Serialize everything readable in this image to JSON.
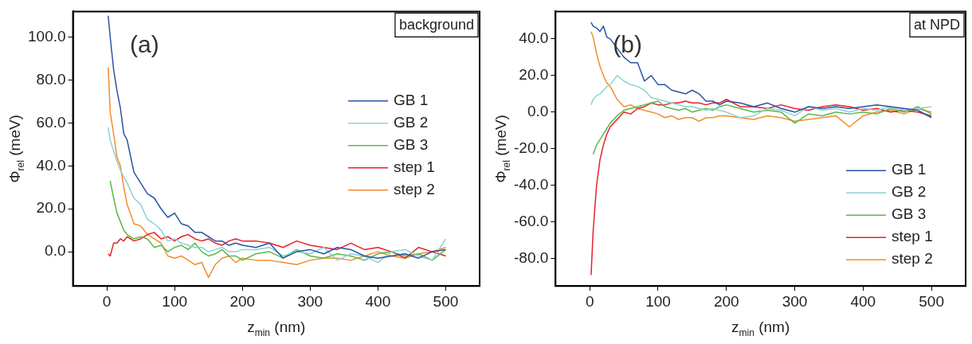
{
  "chart_data": [
    {
      "type": "line",
      "xlabel": "z$_{min}$ (nm)",
      "ylabel": "Φ$_{rel}$ (meV)",
      "annotations": [
        "(a)",
        "background"
      ],
      "x": [
        2,
        5,
        10,
        15,
        20,
        25,
        30,
        40,
        50,
        60,
        70,
        80,
        90,
        100,
        110,
        120,
        130,
        140,
        150,
        160,
        170,
        180,
        190,
        200,
        220,
        240,
        260,
        280,
        300,
        320,
        340,
        360,
        380,
        400,
        420,
        440,
        460,
        480,
        500
      ],
      "xlim": [
        -50,
        550
      ],
      "xticks": [
        0,
        100,
        200,
        300,
        400,
        500
      ],
      "ylim": [
        -16,
        112
      ],
      "yticks": [
        {
          "value": 0,
          "label": "0.0"
        },
        {
          "value": 20,
          "label": "20.0"
        },
        {
          "value": 40,
          "label": "40.0"
        },
        {
          "value": 60,
          "label": "60.0"
        },
        {
          "value": 80,
          "label": "80.0"
        },
        {
          "value": 100,
          "label": "100.0"
        }
      ],
      "legend": "right",
      "grid": false,
      "series": [
        {
          "name": "GB 1",
          "color": "#2a52a8",
          "values": [
            110,
            100,
            85,
            75,
            67,
            55,
            52,
            37,
            32,
            27,
            25,
            20,
            16,
            18,
            13,
            12,
            9,
            9,
            7,
            5,
            5,
            3,
            4,
            3,
            2,
            4,
            -3,
            0,
            1,
            -1,
            2,
            1,
            -2,
            -3,
            -2,
            -1,
            -3,
            0,
            1
          ]
        },
        {
          "name": "GB 2",
          "color": "#8fd1d3",
          "values": [
            58,
            52,
            47,
            42,
            38,
            35,
            32,
            25,
            22,
            15,
            13,
            10,
            5,
            6,
            4,
            3,
            2,
            2,
            0,
            1,
            2,
            0,
            0,
            1,
            1,
            2,
            -2,
            0,
            -1,
            2,
            -4,
            -1,
            -2,
            -5,
            0,
            1,
            -2,
            -4,
            6
          ]
        },
        {
          "name": "GB 3",
          "color": "#5ab947",
          "values": [
            null,
            33,
            25,
            18,
            14,
            10,
            8,
            6,
            7,
            6,
            2,
            3,
            0,
            2,
            3,
            1,
            4,
            0,
            -2,
            -1,
            1,
            -2,
            -2,
            -4,
            -1,
            0,
            -3,
            1,
            -2,
            -3,
            -1,
            -2,
            -4,
            -1,
            0,
            -2,
            -1,
            -4,
            1
          ]
        },
        {
          "name": "step 1",
          "color": "#e8212b",
          "values": [
            -1,
            -2,
            4,
            4,
            6,
            5,
            7,
            5,
            6,
            8,
            9,
            6,
            7,
            5,
            7,
            8,
            6,
            5,
            6,
            4,
            3,
            5,
            6,
            5,
            5,
            4,
            2,
            5,
            3,
            2,
            1,
            4,
            1,
            2,
            0,
            -3,
            2,
            0,
            -2
          ]
        },
        {
          "name": "step 2",
          "color": "#f38d2a",
          "values": [
            86,
            65,
            55,
            44,
            40,
            30,
            22,
            13,
            12,
            8,
            6,
            4,
            -2,
            -3,
            -2,
            -4,
            -6,
            -5,
            -12,
            -6,
            -3,
            -2,
            -5,
            -3,
            -4,
            -4,
            -5,
            -6,
            -4,
            -3,
            -3,
            -4,
            -2,
            0,
            -2,
            -3,
            -1,
            0,
            2
          ]
        }
      ]
    },
    {
      "type": "line",
      "xlabel": "z$_{min}$ (nm)",
      "ylabel": "Φ$_{rel}$ (meV)",
      "annotations": [
        "(b)",
        "at NPD"
      ],
      "x": [
        2,
        5,
        10,
        15,
        20,
        25,
        30,
        40,
        50,
        60,
        70,
        80,
        90,
        100,
        110,
        120,
        130,
        140,
        150,
        160,
        170,
        180,
        190,
        200,
        220,
        240,
        260,
        280,
        300,
        320,
        340,
        360,
        380,
        400,
        420,
        440,
        460,
        480,
        500
      ],
      "xlim": [
        -50,
        550
      ],
      "xticks": [
        0,
        100,
        200,
        300,
        400,
        500
      ],
      "ylim": [
        -95,
        55
      ],
      "yticks": [
        {
          "value": -80,
          "label": "-80.0"
        },
        {
          "value": -60,
          "label": "-60.0"
        },
        {
          "value": -40,
          "label": "-40.0"
        },
        {
          "value": -20,
          "label": "-20.0"
        },
        {
          "value": 0,
          "label": "0.0"
        },
        {
          "value": 20,
          "label": "20.0"
        },
        {
          "value": 40,
          "label": "40.0"
        }
      ],
      "legend": "bottom right",
      "grid": false,
      "series": [
        {
          "name": "GB 1",
          "color": "#2a52a8",
          "values": [
            49,
            47,
            46,
            44,
            47,
            41,
            40,
            35,
            30,
            27,
            27,
            17,
            20,
            15,
            15,
            12,
            11,
            10,
            12,
            10,
            6,
            6,
            4,
            6,
            5,
            3,
            5,
            2,
            0,
            3,
            2,
            3,
            2,
            3,
            4,
            3,
            2,
            1,
            -3
          ]
        },
        {
          "name": "GB 2",
          "color": "#8fd1d3",
          "values": [
            4,
            7,
            9,
            10,
            12,
            14,
            15,
            20,
            17,
            15,
            14,
            12,
            8,
            7,
            6,
            5,
            4,
            3,
            3,
            2,
            1,
            2,
            1,
            0,
            -3,
            -2,
            2,
            1,
            -2,
            3,
            1,
            2,
            0,
            2,
            1,
            3,
            1,
            2,
            3
          ]
        },
        {
          "name": "GB 3",
          "color": "#5ab947",
          "values": [
            null,
            -23,
            -18,
            -15,
            -12,
            -9,
            -6,
            -2,
            1,
            2,
            3,
            4,
            5,
            6,
            3,
            2,
            1,
            2,
            0,
            1,
            2,
            1,
            3,
            4,
            2,
            0,
            1,
            0,
            -6,
            -1,
            -2,
            0,
            -1,
            0,
            -1,
            2,
            0,
            3,
            -1
          ]
        },
        {
          "name": "step 1",
          "color": "#e8212b",
          "values": [
            -89,
            -65,
            -40,
            -26,
            -18,
            -12,
            -8,
            -4,
            0,
            -1,
            2,
            3,
            5,
            4,
            4,
            5,
            5,
            6,
            5,
            5,
            4,
            5,
            5,
            7,
            3,
            3,
            2,
            4,
            2,
            1,
            3,
            4,
            3,
            1,
            2,
            0,
            1,
            0,
            -2
          ]
        },
        {
          "name": "step 2",
          "color": "#f38d2a",
          "values": [
            44,
            41,
            32,
            25,
            20,
            16,
            14,
            7,
            3,
            4,
            2,
            1,
            0,
            -1,
            -3,
            -2,
            -4,
            -3,
            -3,
            -5,
            -3,
            -3,
            -2,
            -2,
            -3,
            -4,
            -2,
            -3,
            -5,
            -4,
            -3,
            -2,
            -8,
            -2,
            0,
            1,
            -1,
            2,
            0
          ]
        }
      ]
    }
  ]
}
